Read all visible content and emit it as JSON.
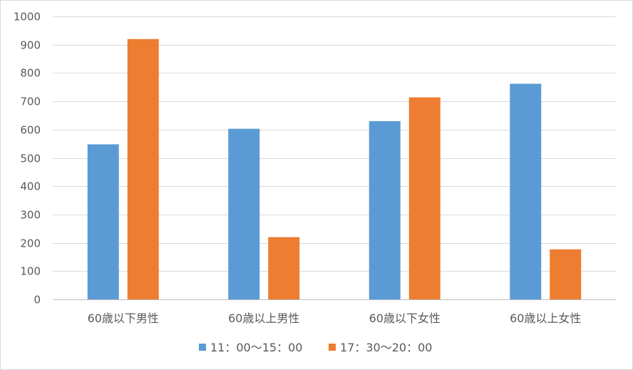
{
  "chart_data": {
    "type": "bar",
    "categories": [
      "60歳以下男性",
      "60歳以上男性",
      "60歳以下女性",
      "60歳以上女性"
    ],
    "series": [
      {
        "name": "11：00～15：00",
        "color": "#5b9bd5",
        "values": [
          548,
          603,
          630,
          762
        ]
      },
      {
        "name": "17：30～20：00",
        "color": "#ed7d31",
        "values": [
          920,
          220,
          714,
          177
        ]
      }
    ],
    "title": "",
    "xlabel": "",
    "ylabel": "",
    "ylim": [
      0,
      1000
    ],
    "yticks": [
      0,
      100,
      200,
      300,
      400,
      500,
      600,
      700,
      800,
      900,
      1000
    ],
    "grid": true,
    "legend_position": "bottom"
  }
}
